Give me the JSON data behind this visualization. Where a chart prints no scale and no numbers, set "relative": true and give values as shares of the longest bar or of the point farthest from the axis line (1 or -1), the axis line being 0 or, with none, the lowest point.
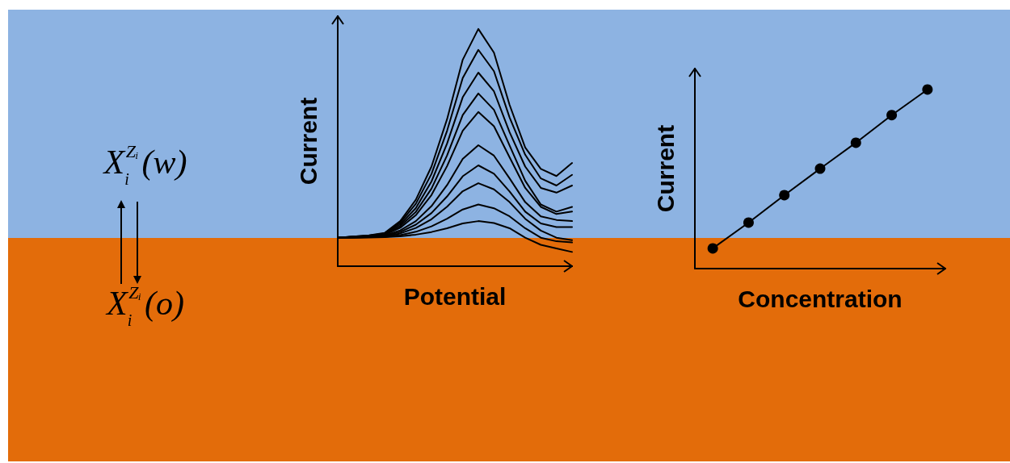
{
  "chart_data": [
    {
      "type": "other",
      "annotations": [
        "X$_{i}$$^{Zᵢ}$(w)",
        "X$_{i}$$^{Zᵢ}$(o)"
      ]
    },
    {
      "type": "line",
      "relative": true,
      "xlabel": "Potential",
      "ylabel": "Current",
      "marker": "none",
      "categories": [
        null,
        null,
        null,
        null,
        null,
        null,
        null,
        null,
        null,
        null,
        null,
        null,
        null,
        null,
        null,
        null
      ],
      "series": [
        {
          "color": "#000000",
          "values": [
            0.12,
            0.125,
            0.13,
            0.14,
            0.19,
            0.28,
            0.42,
            0.62,
            0.87,
            1.0,
            0.9,
            0.68,
            0.5,
            0.41,
            0.38,
            0.435
          ]
        },
        {
          "color": "#000000",
          "values": [
            0.12,
            0.125,
            0.129,
            0.138,
            0.183,
            0.263,
            0.389,
            0.571,
            0.793,
            0.912,
            0.822,
            0.627,
            0.47,
            0.37,
            0.34,
            0.385
          ]
        },
        {
          "color": "#000000",
          "values": [
            0.12,
            0.124,
            0.128,
            0.136,
            0.176,
            0.245,
            0.357,
            0.517,
            0.712,
            0.816,
            0.737,
            0.565,
            0.42,
            0.33,
            0.31,
            0.34
          ]
        },
        {
          "color": "#000000",
          "values": [
            0.12,
            0.124,
            0.127,
            0.134,
            0.169,
            0.229,
            0.327,
            0.467,
            0.637,
            0.728,
            0.659,
            0.509,
            0.36,
            0.26,
            0.23,
            0.25
          ]
        },
        {
          "color": "#000000",
          "values": [
            0.12,
            0.123,
            0.126,
            0.132,
            0.162,
            0.215,
            0.3,
            0.422,
            0.571,
            0.65,
            0.59,
            0.459,
            0.33,
            0.25,
            0.22,
            0.23
          ]
        },
        {
          "color": "#000000",
          "values": [
            0.12,
            0.122,
            0.124,
            0.129,
            0.151,
            0.19,
            0.253,
            0.342,
            0.452,
            0.51,
            0.466,
            0.37,
            0.27,
            0.21,
            0.195,
            0.19
          ]
        },
        {
          "color": "#000000",
          "values": [
            0.12,
            0.122,
            0.123,
            0.127,
            0.144,
            0.175,
            0.224,
            0.294,
            0.379,
            0.425,
            0.39,
            0.315,
            0.23,
            0.18,
            0.165,
            0.165
          ]
        },
        {
          "color": "#000000",
          "values": [
            0.12,
            0.121,
            0.123,
            0.125,
            0.138,
            0.161,
            0.198,
            0.251,
            0.316,
            0.35,
            0.324,
            0.27,
            0.2,
            0.15,
            0.12,
            0.11
          ]
        },
        {
          "color": "#000000",
          "values": [
            0.12,
            0.121,
            0.122,
            0.123,
            0.131,
            0.145,
            0.168,
            0.2,
            0.239,
            0.26,
            0.244,
            0.21,
            0.16,
            0.12,
            0.105,
            0.1
          ]
        },
        {
          "color": "#000000",
          "values": [
            0.12,
            0.12,
            0.121,
            0.122,
            0.126,
            0.133,
            0.144,
            0.16,
            0.18,
            0.19,
            0.182,
            0.16,
            0.12,
            0.09,
            0.075,
            0.06
          ]
        }
      ]
    },
    {
      "type": "line",
      "relative": true,
      "xlabel": "Concentration",
      "ylabel": "Current",
      "marker": "circle",
      "categories": [
        null,
        null,
        null,
        null,
        null,
        null,
        null
      ],
      "series": [
        {
          "color": "#000000",
          "values": [
            0.113,
            0.257,
            0.41,
            0.558,
            0.703,
            0.857,
            1.0
          ]
        }
      ]
    }
  ]
}
